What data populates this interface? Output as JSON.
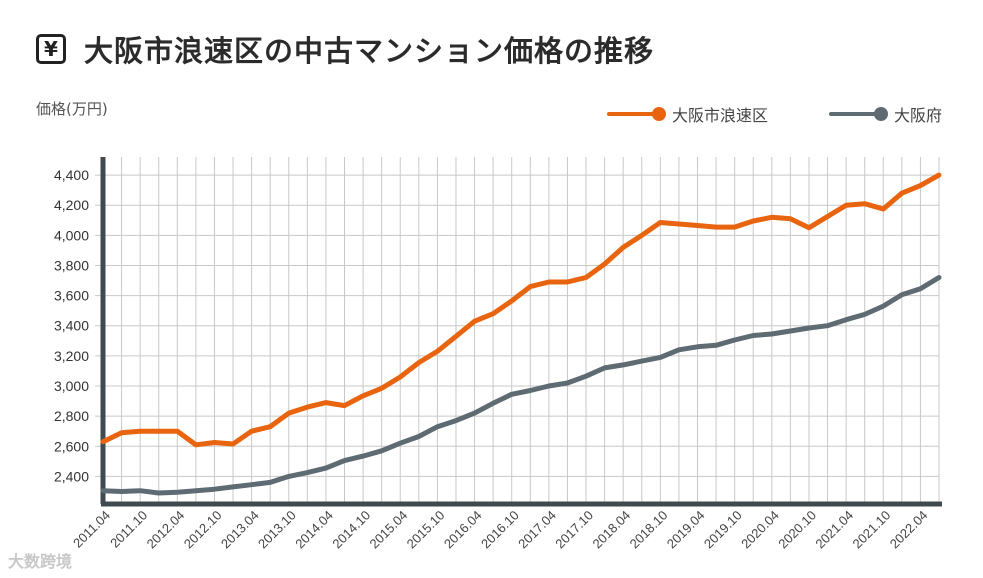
{
  "header": {
    "icon": "yen-icon",
    "icon_glyph": "¥",
    "title": "大阪市浪速区の中古マンション価格の推移"
  },
  "watermark": "大数跨境",
  "colors": {
    "series1": "#e8640e",
    "series2": "#5f6b73",
    "grid": "#c8c8c8",
    "axis": "#3f4a4f"
  },
  "chart_data": {
    "type": "line",
    "title": "大阪市浪速区の中古マンション価格の推移",
    "ylabel": "価格(万円)",
    "xlabel": "",
    "ylim": [
      2230,
      4520
    ],
    "yticks": [
      2400,
      2600,
      2800,
      3000,
      3200,
      3400,
      3600,
      3800,
      4000,
      4200,
      4400
    ],
    "ytick_labels": [
      "2,400",
      "2,600",
      "2,800",
      "3,000",
      "3,200",
      "3,400",
      "3,600",
      "3,800",
      "4,000",
      "4,200",
      "4,400"
    ],
    "grid": true,
    "legend_position": "top-right",
    "x_tick_labels": [
      "2011.04",
      "2011.10",
      "2012.04",
      "2012.10",
      "2013.04",
      "2013.10",
      "2014.04",
      "2014.10",
      "2015.04",
      "2015.10",
      "2016.04",
      "2016.10",
      "2017.04",
      "2017.10",
      "2018.04",
      "2018.10",
      "2019.04",
      "2019.10",
      "2020.04",
      "2020.10",
      "2021.04",
      "2021.10",
      "2022.04"
    ],
    "x": [
      "2011.04",
      "2011.07",
      "2011.10",
      "2012.01",
      "2012.04",
      "2012.07",
      "2012.10",
      "2013.01",
      "2013.04",
      "2013.07",
      "2013.10",
      "2014.01",
      "2014.04",
      "2014.07",
      "2014.10",
      "2015.01",
      "2015.04",
      "2015.07",
      "2015.10",
      "2016.01",
      "2016.04",
      "2016.07",
      "2016.10",
      "2017.01",
      "2017.04",
      "2017.07",
      "2017.10",
      "2018.01",
      "2018.04",
      "2018.07",
      "2018.10",
      "2019.01",
      "2019.04",
      "2019.07",
      "2019.10",
      "2020.01",
      "2020.04",
      "2020.07",
      "2020.10",
      "2021.01",
      "2021.04",
      "2021.07",
      "2021.10",
      "2022.01",
      "2022.04",
      "2022.07"
    ],
    "series": [
      {
        "name": "大阪市浪速区",
        "values": [
          2630,
          2690,
          2700,
          2700,
          2700,
          2610,
          2625,
          2615,
          2700,
          2730,
          2820,
          2860,
          2890,
          2870,
          2935,
          2985,
          3060,
          3155,
          3230,
          3330,
          3430,
          3480,
          3565,
          3660,
          3690,
          3690,
          3720,
          3810,
          3920,
          4000,
          4085,
          4075,
          4065,
          4055,
          4055,
          4095,
          4120,
          4110,
          4050,
          4125,
          4200,
          4210,
          4175,
          4280,
          4330,
          4400
        ]
      },
      {
        "name": "大阪府",
        "values": [
          2305,
          2300,
          2305,
          2290,
          2295,
          2305,
          2315,
          2330,
          2345,
          2360,
          2400,
          2425,
          2455,
          2505,
          2535,
          2570,
          2620,
          2665,
          2730,
          2770,
          2820,
          2885,
          2945,
          2970,
          3000,
          3020,
          3065,
          3120,
          3140,
          3165,
          3190,
          3240,
          3260,
          3270,
          3305,
          3335,
          3345,
          3365,
          3385,
          3400,
          3440,
          3475,
          3530,
          3605,
          3645,
          3720
        ]
      }
    ]
  }
}
